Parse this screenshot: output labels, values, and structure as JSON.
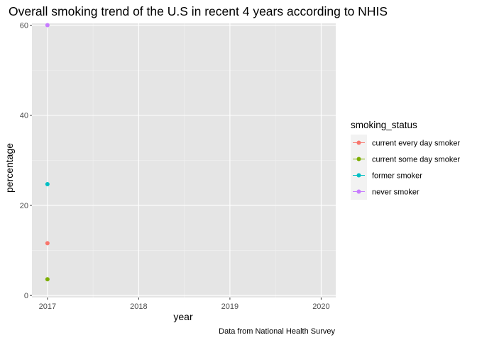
{
  "chart_data": {
    "type": "scatter",
    "title": "Overall smoking trend of the U.S in recent 4 years according to NHIS",
    "xlabel": "year",
    "ylabel": "percentage",
    "caption": "Data from National Health Survey",
    "x_ticks": [
      2017,
      2018,
      2019,
      2020
    ],
    "y_ticks": [
      0,
      20,
      40,
      60
    ],
    "xlim": [
      2016.83,
      2020.16
    ],
    "ylim": [
      -0.45,
      60.4
    ],
    "grid": true,
    "legend_position": "right",
    "legend": {
      "title": "smoking_status",
      "entries": [
        "current every day smoker",
        "current some day smoker",
        "former smoker",
        "never smoker"
      ]
    },
    "series": [
      {
        "name": "current every day smoker",
        "color": "#F8766D",
        "points": [
          {
            "x": 2017,
            "y": 11.6
          }
        ]
      },
      {
        "name": "current some day smoker",
        "color": "#7CAE00",
        "points": [
          {
            "x": 2017,
            "y": 3.6
          }
        ]
      },
      {
        "name": "former smoker",
        "color": "#00BFC4",
        "points": [
          {
            "x": 2017,
            "y": 24.7
          }
        ]
      },
      {
        "name": "never smoker",
        "color": "#C77CFF",
        "points": [
          {
            "x": 2017,
            "y": 60.0
          }
        ]
      }
    ],
    "panel_background": "#E5E5E5",
    "legend_key_background": "#F2F2F2"
  }
}
